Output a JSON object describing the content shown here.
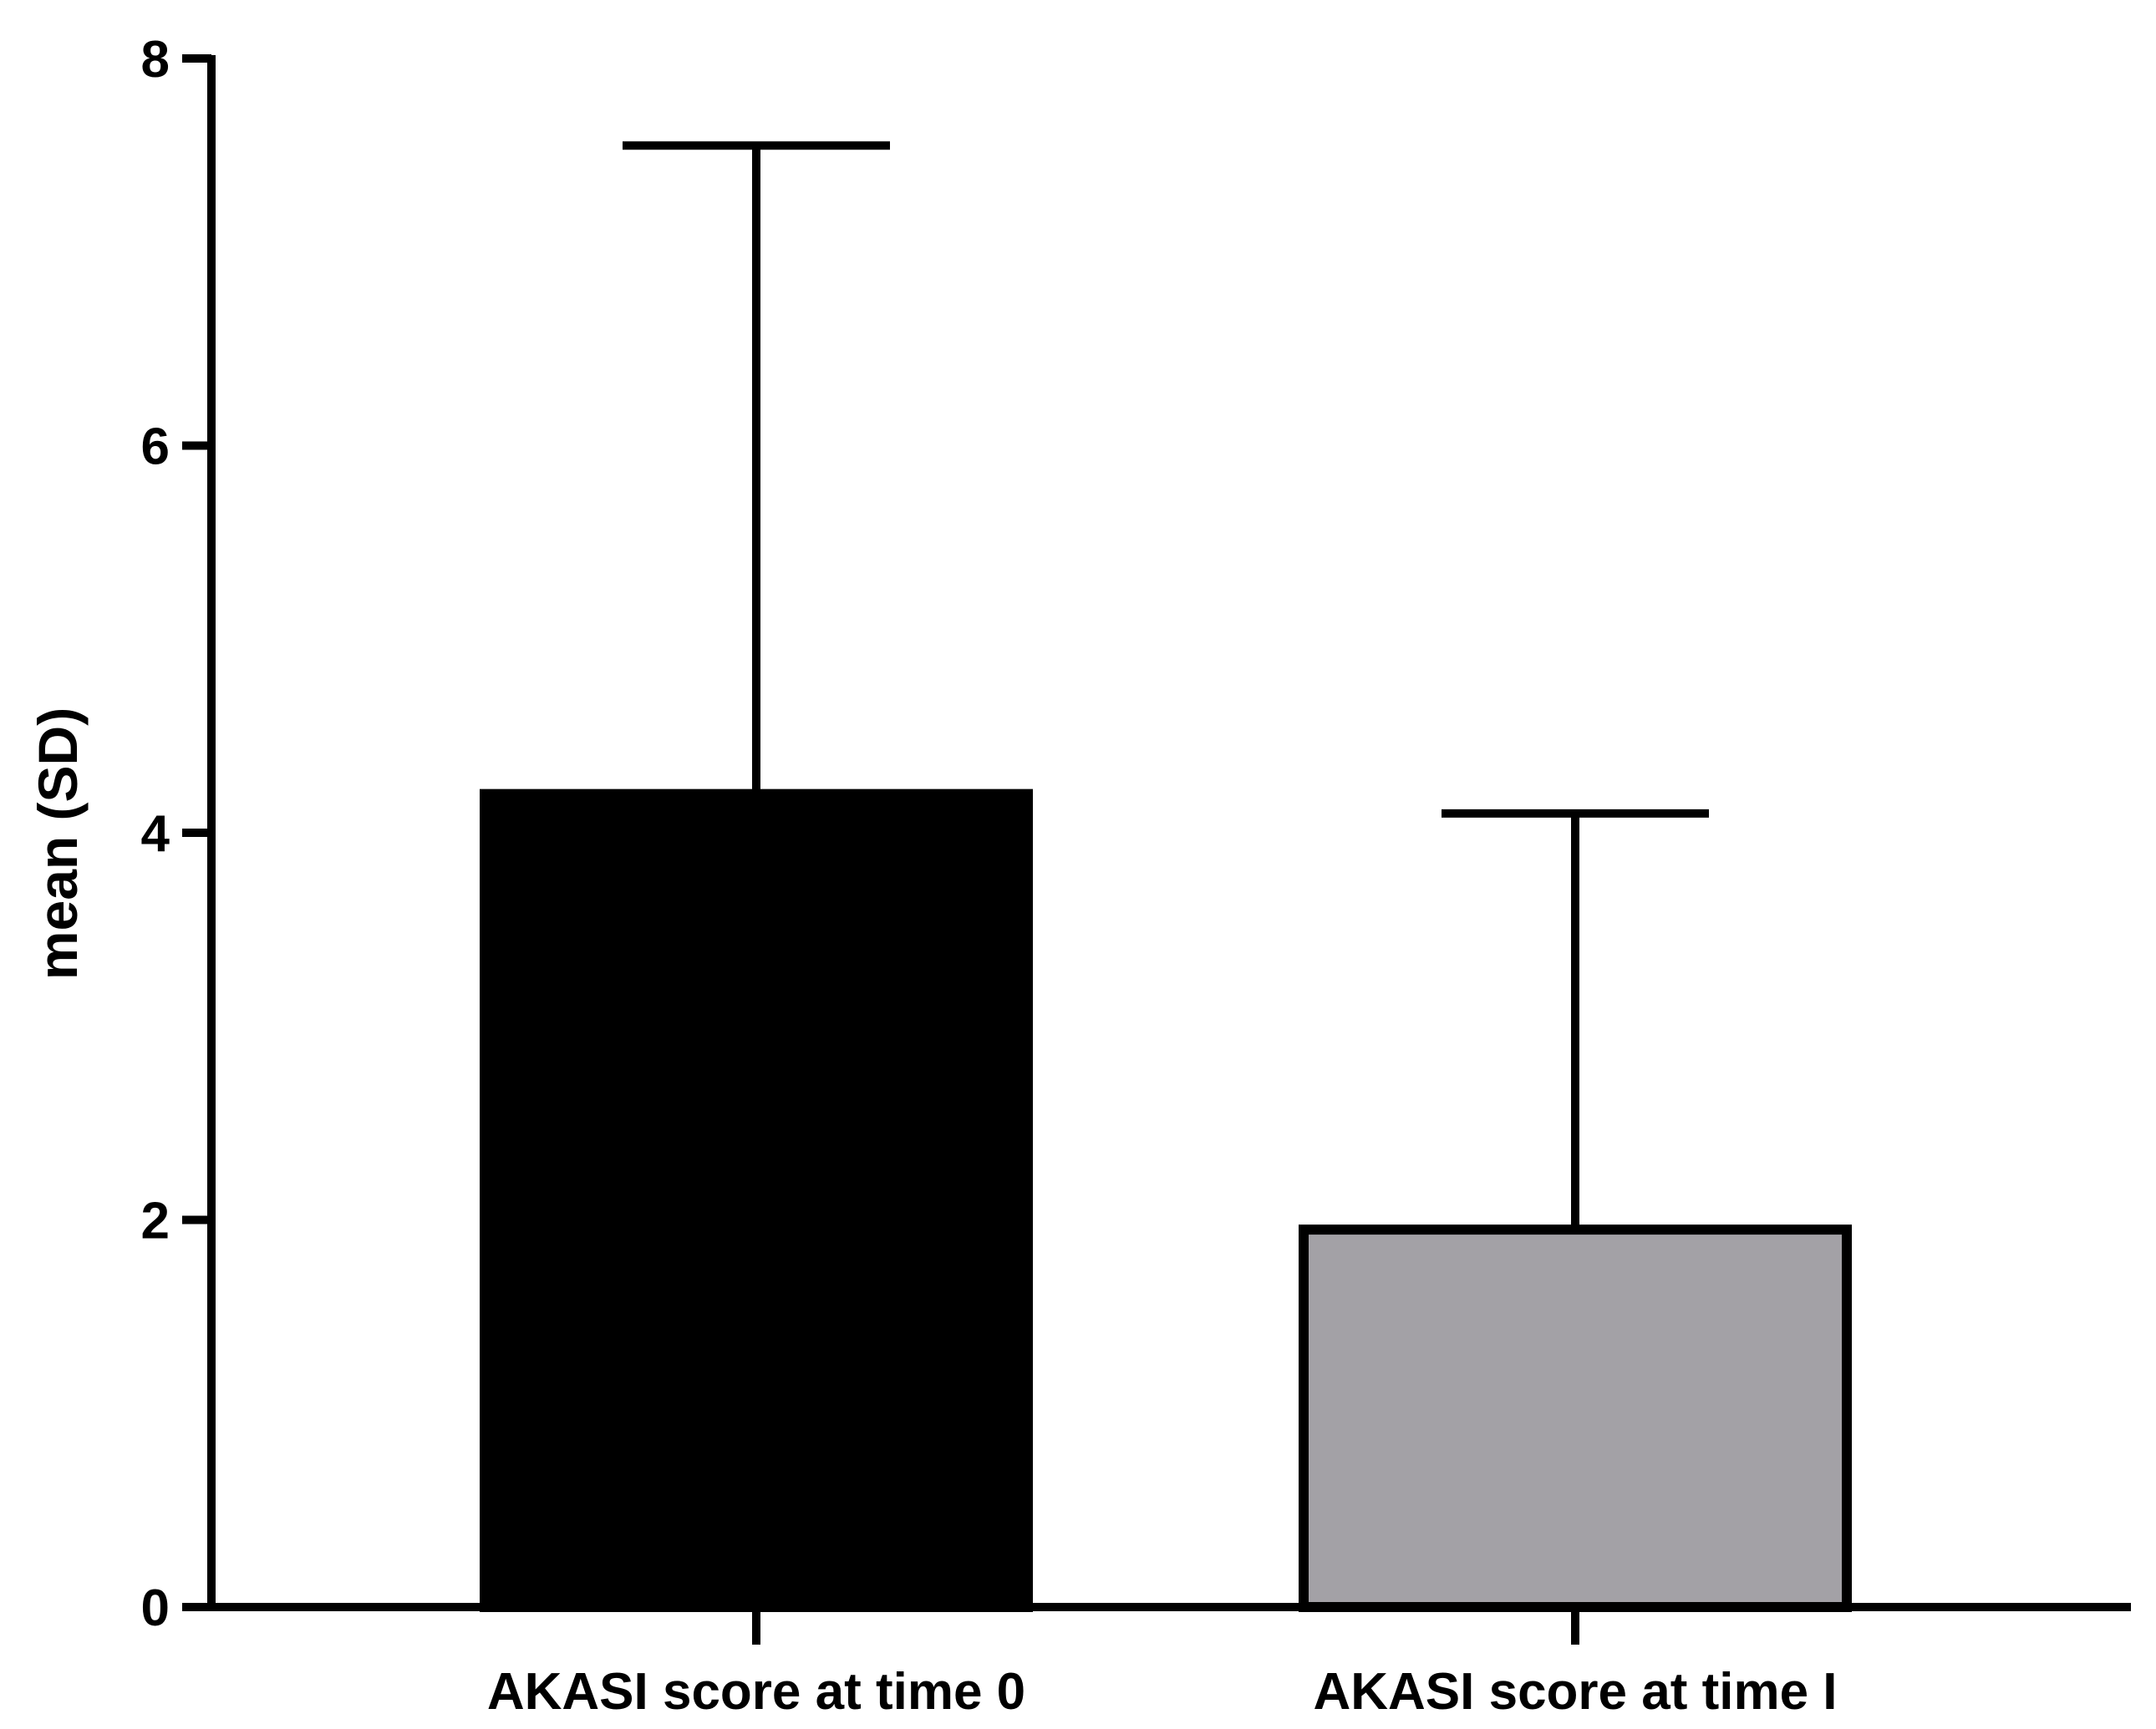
{
  "chart_data": {
    "type": "bar",
    "title": "",
    "xlabel": "",
    "ylabel": "mean (SD)",
    "ylim": [
      0,
      8
    ],
    "yticks": [
      0,
      2,
      4,
      6,
      8
    ],
    "grid": false,
    "categories": [
      "AKASI score at time 0",
      "AKASI score at time I"
    ],
    "values": [
      4.2,
      1.95
    ],
    "error_upper": [
      7.55,
      4.1
    ],
    "bar_colors": [
      "#000000",
      "#a3a1a6"
    ],
    "axis_color": "#000000"
  }
}
